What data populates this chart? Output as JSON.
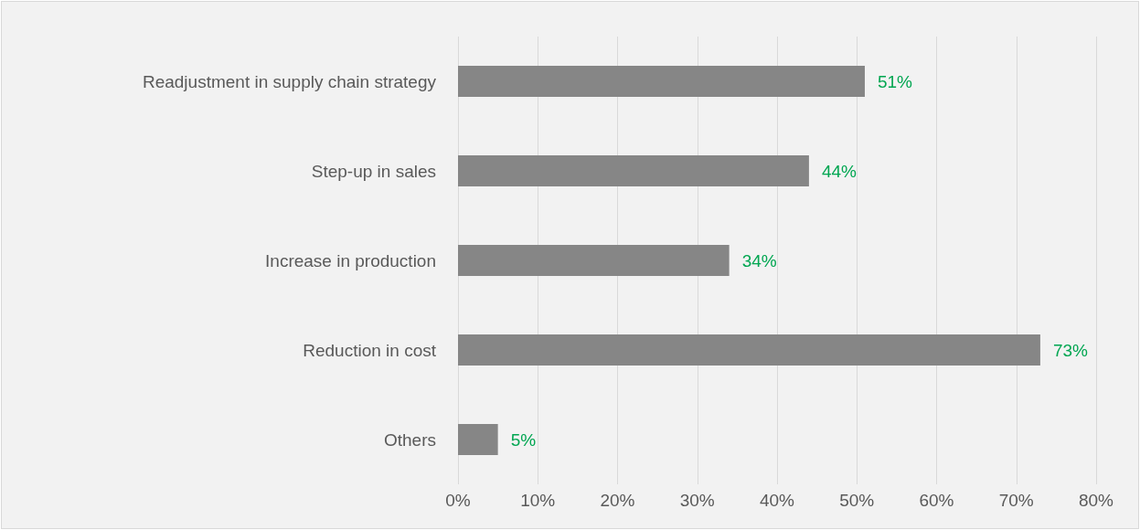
{
  "chart_data": {
    "type": "bar",
    "orientation": "horizontal",
    "categories": [
      "Readjustment in supply chain strategy",
      "Step-up in sales",
      "Increase in production",
      "Reduction in cost",
      "Others"
    ],
    "values": [
      51,
      44,
      34,
      73,
      5
    ],
    "value_labels": [
      "51%",
      "44%",
      "34%",
      "73%",
      "5%"
    ],
    "color": "#868686",
    "xlim": [
      0,
      80
    ],
    "xticks": [
      {
        "value": 0,
        "label": "0%"
      },
      {
        "value": 10,
        "label": "10%"
      },
      {
        "value": 20,
        "label": "20%"
      },
      {
        "value": 30,
        "label": "30%"
      },
      {
        "value": 40,
        "label": "40%"
      },
      {
        "value": 50,
        "label": "50%"
      },
      {
        "value": 60,
        "label": "60%"
      },
      {
        "value": 70,
        "label": "70%"
      },
      {
        "value": 80,
        "label": "80%"
      }
    ],
    "grid": "x"
  }
}
